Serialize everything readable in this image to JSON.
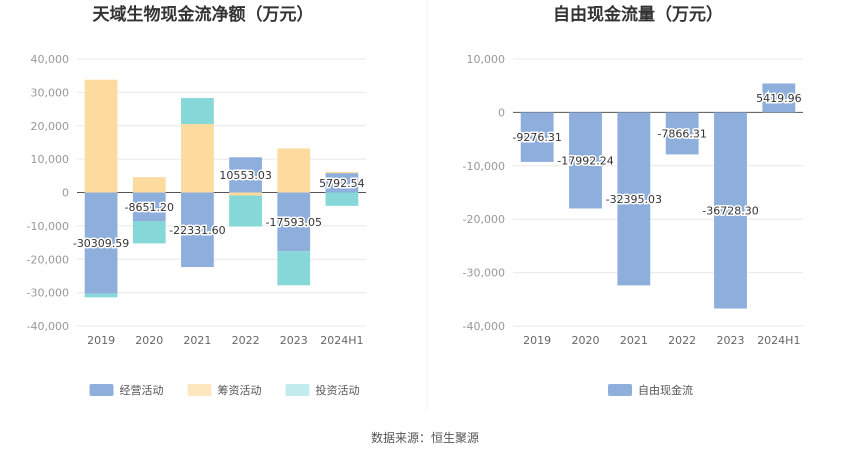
{
  "chart_data": [
    {
      "type": "bar",
      "stacked": true,
      "title": "天域生物现金流净额（万元）",
      "categories": [
        "2019",
        "2020",
        "2021",
        "2022",
        "2023",
        "2024H1"
      ],
      "yticks": [
        "40,000",
        "30,000",
        "20,000",
        "10,000",
        "0",
        "-10,000",
        "-20,000",
        "-30,000",
        "-40,000"
      ],
      "ylim": [
        -40000,
        40000
      ],
      "legend_position": "bottom",
      "grid": true,
      "series": [
        {
          "name": "经营活动",
          "color": "#8eaedc",
          "values": [
            -30309.59,
            -8651.2,
            -22331.6,
            10553.03,
            -17593.05,
            5792.54
          ]
        },
        {
          "name": "筹资活动",
          "color": "#fddb9f",
          "values": [
            33800,
            4600,
            20500,
            -900,
            13200,
            400
          ]
        },
        {
          "name": "投资活动",
          "color": "#86d7d8",
          "values": [
            -1100,
            -6600,
            7800,
            -9300,
            -10200,
            -4000
          ]
        }
      ],
      "data_labels": [
        "-30309.59",
        "-8651.20",
        "-22331.60",
        "10553.03",
        "-17593.05",
        "5792.54"
      ],
      "legend_labels": [
        "经营活动",
        "筹资活动",
        "投资活动"
      ],
      "legend_colors": [
        "#8eaedc",
        "#fde7bf",
        "#c2ecec"
      ]
    },
    {
      "type": "bar",
      "title": "自由现金流量（万元）",
      "categories": [
        "2019",
        "2020",
        "2021",
        "2022",
        "2023",
        "2024H1"
      ],
      "yticks": [
        "10,000",
        "0",
        "-10,000",
        "-20,000",
        "-30,000",
        "-40,000"
      ],
      "ylim": [
        -40000,
        10000
      ],
      "legend_position": "bottom",
      "grid": true,
      "series": [
        {
          "name": "自由现金流",
          "color": "#8eaedc",
          "values": [
            -9276.31,
            -17992.24,
            -32395.03,
            -7866.31,
            -36728.3,
            5419.96
          ]
        }
      ],
      "data_labels": [
        "-9276.31",
        "-17992.24",
        "-32395.03",
        "-7866.31",
        "-36728.30",
        "5419.96"
      ],
      "legend_labels": [
        "自由现金流"
      ],
      "legend_colors": [
        "#8eaedc"
      ]
    }
  ],
  "source": "数据来源：恒生聚源"
}
